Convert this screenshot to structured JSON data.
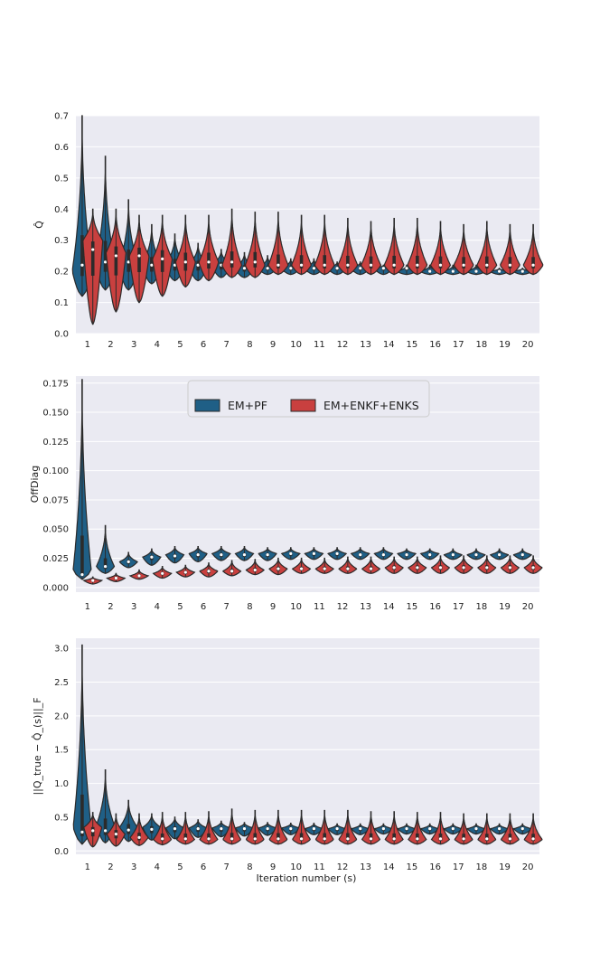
{
  "colors": {
    "em_pf": "#1f5f86",
    "em_enkf": "#c9403f",
    "edge": "#2b2b2b",
    "bg": "#eaeaf2",
    "grid": "#ffffff",
    "ref": "#d6453f"
  },
  "legend": {
    "series1": "EM+PF",
    "series2": "EM+ENKF+ENKS",
    "placement": "top-center (middle panel)"
  },
  "xlabel": "Iteration number (s)",
  "chart_data": [
    {
      "type": "violin",
      "ylabel": "Q̂",
      "ylim": [
        0,
        0.7
      ],
      "yticks": [
        "0.0",
        "0.1",
        "0.2",
        "0.3",
        "0.4",
        "0.5",
        "0.6",
        "0.7"
      ],
      "categories": [
        "1",
        "2",
        "3",
        "4",
        "5",
        "6",
        "7",
        "8",
        "9",
        "10",
        "11",
        "12",
        "13",
        "14",
        "15",
        "16",
        "17",
        "18",
        "19",
        "20"
      ],
      "reference_line": 0.2,
      "series": [
        {
          "name": "EM+PF",
          "min": [
            0.12,
            0.14,
            0.14,
            0.16,
            0.17,
            0.17,
            0.18,
            0.18,
            0.19,
            0.19,
            0.19,
            0.19,
            0.19,
            0.19,
            0.19,
            0.19,
            0.19,
            0.19,
            0.19,
            0.19
          ],
          "max": [
            0.7,
            0.57,
            0.43,
            0.35,
            0.32,
            0.29,
            0.27,
            0.26,
            0.25,
            0.24,
            0.24,
            0.23,
            0.23,
            0.22,
            0.22,
            0.22,
            0.22,
            0.22,
            0.21,
            0.21
          ],
          "median": [
            0.22,
            0.23,
            0.23,
            0.22,
            0.22,
            0.22,
            0.22,
            0.21,
            0.21,
            0.21,
            0.21,
            0.21,
            0.21,
            0.21,
            0.21,
            0.2,
            0.2,
            0.2,
            0.2,
            0.2
          ],
          "mode": [
            0.2,
            0.22,
            0.22,
            0.22,
            0.22,
            0.22,
            0.22,
            0.21,
            0.21,
            0.21,
            0.21,
            0.21,
            0.21,
            0.21,
            0.2,
            0.2,
            0.2,
            0.2,
            0.2,
            0.2
          ]
        },
        {
          "name": "EM+ENKF+ENKS",
          "min": [
            0.03,
            0.07,
            0.1,
            0.12,
            0.15,
            0.17,
            0.18,
            0.18,
            0.19,
            0.19,
            0.19,
            0.19,
            0.19,
            0.19,
            0.19,
            0.19,
            0.19,
            0.19,
            0.19,
            0.19
          ],
          "max": [
            0.4,
            0.4,
            0.38,
            0.38,
            0.38,
            0.38,
            0.4,
            0.39,
            0.39,
            0.38,
            0.38,
            0.37,
            0.36,
            0.37,
            0.37,
            0.36,
            0.35,
            0.36,
            0.35,
            0.35
          ],
          "median": [
            0.27,
            0.25,
            0.25,
            0.24,
            0.23,
            0.23,
            0.23,
            0.23,
            0.22,
            0.22,
            0.22,
            0.22,
            0.22,
            0.22,
            0.22,
            0.22,
            0.22,
            0.22,
            0.22,
            0.22
          ],
          "mode": [
            0.3,
            0.26,
            0.25,
            0.24,
            0.23,
            0.23,
            0.22,
            0.22,
            0.22,
            0.22,
            0.22,
            0.22,
            0.22,
            0.22,
            0.22,
            0.22,
            0.22,
            0.22,
            0.22,
            0.22
          ]
        }
      ]
    },
    {
      "type": "violin",
      "ylabel": "OffDiag",
      "ylim": [
        -0.004,
        0.181
      ],
      "yticks": [
        "0.000",
        "0.025",
        "0.050",
        "0.075",
        "0.100",
        "0.125",
        "0.150",
        "0.175"
      ],
      "categories": [
        "1",
        "2",
        "3",
        "4",
        "5",
        "6",
        "7",
        "8",
        "9",
        "10",
        "11",
        "12",
        "13",
        "14",
        "15",
        "16",
        "17",
        "18",
        "19",
        "20"
      ],
      "series": [
        {
          "name": "EM+PF",
          "min": [
            0.007,
            0.012,
            0.017,
            0.019,
            0.021,
            0.022,
            0.023,
            0.023,
            0.023,
            0.024,
            0.024,
            0.024,
            0.024,
            0.024,
            0.024,
            0.024,
            0.024,
            0.024,
            0.024,
            0.024
          ],
          "max": [
            0.178,
            0.053,
            0.03,
            0.033,
            0.035,
            0.035,
            0.035,
            0.035,
            0.034,
            0.034,
            0.034,
            0.034,
            0.034,
            0.034,
            0.033,
            0.033,
            0.033,
            0.033,
            0.033,
            0.033
          ],
          "median": [
            0.011,
            0.018,
            0.022,
            0.026,
            0.027,
            0.028,
            0.028,
            0.028,
            0.028,
            0.029,
            0.029,
            0.029,
            0.028,
            0.028,
            0.028,
            0.028,
            0.028,
            0.028,
            0.028,
            0.028
          ],
          "mode": [
            0.015,
            0.018,
            0.022,
            0.026,
            0.028,
            0.029,
            0.029,
            0.029,
            0.029,
            0.029,
            0.029,
            0.029,
            0.029,
            0.029,
            0.029,
            0.029,
            0.028,
            0.028,
            0.028,
            0.028
          ]
        },
        {
          "name": "EM+ENKF+ENKS",
          "min": [
            0.003,
            0.005,
            0.007,
            0.008,
            0.009,
            0.009,
            0.01,
            0.011,
            0.011,
            0.012,
            0.012,
            0.012,
            0.012,
            0.012,
            0.012,
            0.012,
            0.012,
            0.012,
            0.012,
            0.012
          ],
          "max": [
            0.009,
            0.012,
            0.015,
            0.018,
            0.019,
            0.021,
            0.023,
            0.024,
            0.025,
            0.025,
            0.025,
            0.026,
            0.026,
            0.026,
            0.026,
            0.027,
            0.027,
            0.027,
            0.027,
            0.027
          ],
          "median": [
            0.006,
            0.008,
            0.01,
            0.012,
            0.013,
            0.014,
            0.014,
            0.015,
            0.016,
            0.016,
            0.016,
            0.016,
            0.016,
            0.017,
            0.017,
            0.017,
            0.017,
            0.017,
            0.017,
            0.017
          ],
          "mode": [
            0.006,
            0.008,
            0.01,
            0.012,
            0.013,
            0.014,
            0.014,
            0.015,
            0.016,
            0.016,
            0.016,
            0.016,
            0.016,
            0.017,
            0.017,
            0.017,
            0.017,
            0.017,
            0.017,
            0.017
          ]
        }
      ]
    },
    {
      "type": "violin",
      "ylabel": "||Q_true − Q̂_(s)||_F",
      "ylim": [
        -0.05,
        3.15
      ],
      "yticks": [
        "0.0",
        "0.5",
        "1.0",
        "1.5",
        "2.0",
        "2.5",
        "3.0"
      ],
      "categories": [
        "1",
        "2",
        "3",
        "4",
        "5",
        "6",
        "7",
        "8",
        "9",
        "10",
        "11",
        "12",
        "13",
        "14",
        "15",
        "16",
        "17",
        "18",
        "19",
        "20"
      ],
      "series": [
        {
          "name": "EM+PF",
          "min": [
            0.1,
            0.12,
            0.14,
            0.16,
            0.18,
            0.2,
            0.21,
            0.22,
            0.23,
            0.24,
            0.24,
            0.24,
            0.24,
            0.25,
            0.25,
            0.25,
            0.25,
            0.25,
            0.25,
            0.25
          ],
          "max": [
            3.05,
            1.2,
            0.75,
            0.55,
            0.5,
            0.46,
            0.44,
            0.42,
            0.42,
            0.41,
            0.41,
            0.4,
            0.4,
            0.4,
            0.4,
            0.4,
            0.4,
            0.4,
            0.4,
            0.4
          ],
          "median": [
            0.28,
            0.3,
            0.31,
            0.32,
            0.33,
            0.33,
            0.33,
            0.33,
            0.33,
            0.33,
            0.33,
            0.33,
            0.33,
            0.33,
            0.33,
            0.33,
            0.33,
            0.33,
            0.33,
            0.33
          ],
          "mode": [
            0.35,
            0.38,
            0.35,
            0.35,
            0.34,
            0.34,
            0.34,
            0.34,
            0.34,
            0.34,
            0.33,
            0.33,
            0.33,
            0.33,
            0.33,
            0.33,
            0.33,
            0.33,
            0.33,
            0.33
          ]
        },
        {
          "name": "EM+ENKF+ENKS",
          "min": [
            0.06,
            0.07,
            0.08,
            0.09,
            0.1,
            0.1,
            0.1,
            0.1,
            0.1,
            0.1,
            0.1,
            0.1,
            0.1,
            0.1,
            0.1,
            0.1,
            0.1,
            0.1,
            0.1,
            0.1
          ],
          "max": [
            0.57,
            0.55,
            0.55,
            0.57,
            0.57,
            0.58,
            0.62,
            0.6,
            0.6,
            0.6,
            0.6,
            0.6,
            0.58,
            0.58,
            0.57,
            0.57,
            0.55,
            0.55,
            0.55,
            0.55
          ],
          "median": [
            0.3,
            0.25,
            0.2,
            0.18,
            0.18,
            0.18,
            0.18,
            0.18,
            0.18,
            0.18,
            0.18,
            0.18,
            0.18,
            0.18,
            0.18,
            0.18,
            0.18,
            0.18,
            0.18,
            0.18
          ],
          "mode": [
            0.35,
            0.25,
            0.2,
            0.17,
            0.17,
            0.17,
            0.17,
            0.17,
            0.17,
            0.17,
            0.17,
            0.17,
            0.17,
            0.17,
            0.17,
            0.17,
            0.17,
            0.17,
            0.17,
            0.17
          ]
        }
      ]
    }
  ]
}
